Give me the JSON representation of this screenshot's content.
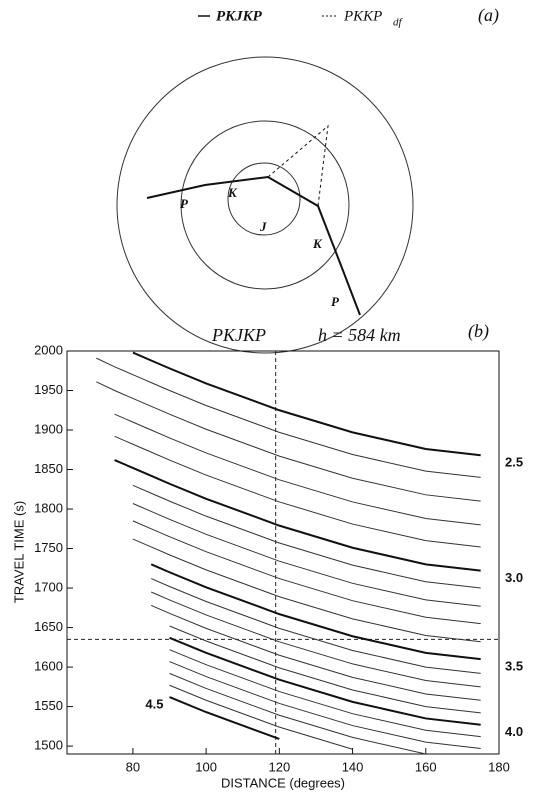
{
  "diagram": {
    "label": "(a)",
    "legend": [
      {
        "name": "PKJKP"
      },
      {
        "name": "PKKP",
        "subscript": "df"
      }
    ],
    "ray_labels": [
      "P",
      "K",
      "J",
      "K",
      "P"
    ]
  },
  "chart_data": {
    "type": "line",
    "panel_label": "(b)",
    "title": "PKJKP",
    "annotation": "h = 584 km",
    "x_label": "DISTANCE (degrees)",
    "y_label": "TRAVEL TIME (s)",
    "xlim": [
      62,
      180
    ],
    "ylim": [
      1490,
      2000
    ],
    "xticks": [
      80,
      100,
      120,
      140,
      160,
      180
    ],
    "yticks": [
      1500,
      1550,
      1600,
      1650,
      1700,
      1750,
      1800,
      1850,
      1900,
      1950,
      2000
    ],
    "vlines": [
      119
    ],
    "hlines": [
      1635
    ],
    "x": [
      70,
      75,
      80,
      85,
      90,
      100,
      120,
      140,
      160,
      175
    ],
    "series": [
      {
        "name": "2.5",
        "color": "#111",
        "width": 2,
        "values": [
          null,
          null,
          1998,
          1988,
          1978,
          1959,
          1925,
          1897,
          1876,
          1868
        ]
      },
      {
        "color": "#333",
        "width": 1,
        "values": [
          1991,
          1980,
          1970,
          1960,
          1950,
          1931,
          1897,
          1869,
          1848,
          1840
        ]
      },
      {
        "color": "#333",
        "width": 1,
        "values": [
          1961,
          1950,
          1940,
          1930,
          1920,
          1901,
          1867,
          1839,
          1818,
          1810
        ]
      },
      {
        "color": "#333",
        "width": 1,
        "values": [
          null,
          1920,
          1910,
          1900,
          1890,
          1871,
          1837,
          1809,
          1788,
          1780
        ]
      },
      {
        "color": "#333",
        "width": 1,
        "values": [
          null,
          1892,
          1882,
          1872,
          1862,
          1843,
          1809,
          1781,
          1760,
          1752
        ]
      },
      {
        "name": "3.0",
        "color": "#111",
        "width": 2,
        "values": [
          null,
          1862,
          1852,
          1842,
          1832,
          1813,
          1779,
          1751,
          1730,
          1722
        ]
      },
      {
        "color": "#333",
        "width": 1,
        "values": [
          null,
          null,
          1830,
          1820,
          1810,
          1791,
          1757,
          1729,
          1708,
          1700
        ]
      },
      {
        "color": "#333",
        "width": 1,
        "values": [
          null,
          null,
          1807,
          1797,
          1787,
          1768,
          1734,
          1706,
          1685,
          1677
        ]
      },
      {
        "color": "#333",
        "width": 1,
        "values": [
          null,
          null,
          1785,
          1775,
          1765,
          1746,
          1712,
          1684,
          1663,
          1655
        ]
      },
      {
        "color": "#333",
        "width": 1,
        "values": [
          null,
          null,
          1762,
          1752,
          1742,
          1723,
          1689,
          1661,
          1640,
          1632
        ]
      },
      {
        "name": "3.5",
        "color": "#111",
        "width": 2,
        "values": [
          null,
          null,
          null,
          1730,
          1720,
          1701,
          1667,
          1639,
          1618,
          1610
        ]
      },
      {
        "color": "#333",
        "width": 1,
        "values": [
          null,
          null,
          null,
          1712,
          1702,
          1683,
          1649,
          1621,
          1600,
          1592
        ]
      },
      {
        "color": "#333",
        "width": 1,
        "values": [
          null,
          null,
          null,
          1695,
          1685,
          1666,
          1632,
          1604,
          1583,
          1575
        ]
      },
      {
        "color": "#333",
        "width": 1,
        "values": [
          null,
          null,
          null,
          1678,
          1668,
          1649,
          1615,
          1587,
          1566,
          1558
        ]
      },
      {
        "color": "#333",
        "width": 1,
        "values": [
          null,
          null,
          null,
          null,
          1652,
          1633,
          1599,
          1571,
          1550,
          1542
        ]
      },
      {
        "name": "4.0",
        "color": "#111",
        "width": 2,
        "values": [
          null,
          null,
          null,
          null,
          1637,
          1618,
          1584,
          1556,
          1535,
          1527
        ]
      },
      {
        "color": "#333",
        "width": 1,
        "values": [
          null,
          null,
          null,
          null,
          1622,
          1603,
          1569,
          1541,
          1520,
          1512
        ]
      },
      {
        "color": "#333",
        "width": 1,
        "values": [
          null,
          null,
          null,
          null,
          1607,
          1588,
          1554,
          1526,
          1505,
          1497
        ]
      },
      {
        "color": "#333",
        "width": 1,
        "values": [
          null,
          null,
          null,
          null,
          1592,
          1573,
          1539,
          1511,
          1490,
          null
        ]
      },
      {
        "color": "#333",
        "width": 1,
        "values": [
          null,
          null,
          null,
          null,
          1577,
          1558,
          1524,
          1496,
          null,
          null
        ]
      },
      {
        "name": "4.5",
        "color": "#111",
        "width": 2,
        "values": [
          null,
          null,
          null,
          null,
          1562,
          1543,
          1509,
          null,
          null,
          null
        ]
      }
    ]
  }
}
